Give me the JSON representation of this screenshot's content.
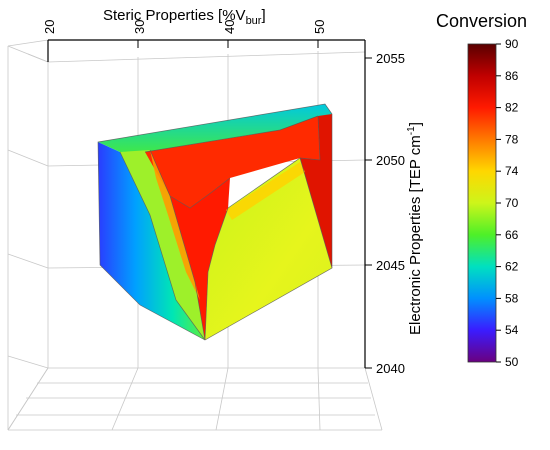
{
  "chart_data": {
    "type": "surface3d",
    "title": "",
    "x_axis": {
      "label": "Steric Properties [%V",
      "label_sub": "bur",
      "label_end": "]",
      "ticks": [
        "20",
        "30",
        "40",
        "50"
      ],
      "range": [
        20,
        52
      ]
    },
    "y_axis": {
      "label": "Electronic Properties [TEP cm",
      "label_sup": "-1",
      "label_end": "]",
      "ticks": [
        "2040",
        "2045",
        "2050",
        "2055"
      ],
      "range": [
        2040,
        2055
      ]
    },
    "colorbar": {
      "title": "Conversion",
      "ticks": [
        "50",
        "54",
        "58",
        "62",
        "66",
        "70",
        "74",
        "78",
        "82",
        "86",
        "90"
      ],
      "range": [
        50,
        90
      ]
    },
    "grid": true,
    "surface_regions": [
      {
        "region": "left-outer-edge",
        "conversion": 60
      },
      {
        "region": "left-inner-band",
        "conversion": 66
      },
      {
        "region": "upper-ridge",
        "conversion": 82
      },
      {
        "region": "central-ridge",
        "conversion": 84
      },
      {
        "region": "right-plateau",
        "conversion": 70
      },
      {
        "region": "far-right-peak",
        "conversion": 84
      },
      {
        "region": "top-edge",
        "conversion": 64
      }
    ]
  }
}
